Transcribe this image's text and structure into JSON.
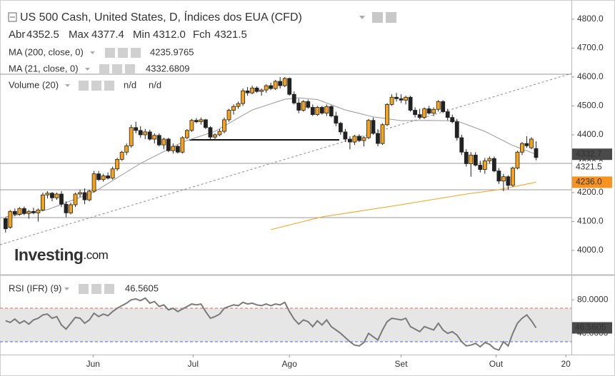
{
  "chart_data": {
    "type": "candlestick",
    "title": "US 500 Cash, United States, D, Índices dos EUA (CFD)",
    "ohlc_labels": [
      "Abr",
      "Max",
      "Min",
      "Fch"
    ],
    "ohlc_values": [
      "4352.5",
      "4377.4",
      "4312.0",
      "4321.5"
    ],
    "up_color": "#f7a21b",
    "down_color": "#222222",
    "xlim": [
      -1.2,
      121.6
    ],
    "xticks": [
      {
        "value": 18.8,
        "label": "Jun"
      },
      {
        "value": 40.3,
        "label": "Jul"
      },
      {
        "value": 61,
        "label": "Ago"
      },
      {
        "value": 85,
        "label": "Set"
      },
      {
        "value": 105.4,
        "label": "Out"
      },
      {
        "value": 120.4,
        "label": "20"
      }
    ],
    "ylim": [
      3921,
      4854
    ],
    "yticks": [
      {
        "value": 4800,
        "label": "4800.0"
      },
      {
        "value": 4700,
        "label": "4700.0"
      },
      {
        "value": 4600,
        "label": "4600.0"
      },
      {
        "value": 4500,
        "label": "4500.0"
      },
      {
        "value": 4400,
        "label": "4400.0"
      },
      {
        "value": 4300,
        "label": "4300.0"
      },
      {
        "value": 4200,
        "label": "4200.0"
      },
      {
        "value": 4100,
        "label": "4100.0"
      },
      {
        "value": 4000,
        "label": "4000.0"
      }
    ],
    "candles": [
      [
        4110,
        4115,
        4062,
        4075
      ],
      [
        4080,
        4140,
        4075,
        4135
      ],
      [
        4135,
        4145,
        4118,
        4125
      ],
      [
        4125,
        4150,
        4120,
        4145
      ],
      [
        4145,
        4152,
        4122,
        4128
      ],
      [
        4128,
        4140,
        4110,
        4135
      ],
      [
        4135,
        4148,
        4125,
        4130
      ],
      [
        4130,
        4145,
        4100,
        4140
      ],
      [
        4140,
        4200,
        4135,
        4192
      ],
      [
        4192,
        4205,
        4180,
        4198
      ],
      [
        4198,
        4202,
        4170,
        4182
      ],
      [
        4182,
        4200,
        4175,
        4195
      ],
      [
        4195,
        4205,
        4150,
        4160
      ],
      [
        4160,
        4170,
        4115,
        4130
      ],
      [
        4130,
        4165,
        4125,
        4158
      ],
      [
        4158,
        4200,
        4150,
        4195
      ],
      [
        4195,
        4210,
        4185,
        4200
      ],
      [
        4200,
        4215,
        4160,
        4175
      ],
      [
        4175,
        4210,
        4170,
        4205
      ],
      [
        4205,
        4275,
        4200,
        4265
      ],
      [
        4265,
        4275,
        4240,
        4245
      ],
      [
        4245,
        4265,
        4238,
        4258
      ],
      [
        4258,
        4270,
        4245,
        4250
      ],
      [
        4250,
        4290,
        4245,
        4282
      ],
      [
        4282,
        4320,
        4275,
        4315
      ],
      [
        4315,
        4345,
        4310,
        4340
      ],
      [
        4340,
        4370,
        4330,
        4362
      ],
      [
        4362,
        4435,
        4355,
        4425
      ],
      [
        4425,
        4445,
        4405,
        4415
      ],
      [
        4415,
        4430,
        4390,
        4400
      ],
      [
        4400,
        4420,
        4385,
        4410
      ],
      [
        4410,
        4418,
        4380,
        4385
      ],
      [
        4385,
        4405,
        4370,
        4398
      ],
      [
        4398,
        4405,
        4360,
        4365
      ],
      [
        4365,
        4390,
        4350,
        4385
      ],
      [
        4385,
        4390,
        4340,
        4345
      ],
      [
        4345,
        4370,
        4335,
        4360
      ],
      [
        4360,
        4365,
        4335,
        4340
      ],
      [
        4340,
        4395,
        4335,
        4390
      ],
      [
        4390,
        4420,
        4385,
        4415
      ],
      [
        4415,
        4455,
        4410,
        4450
      ],
      [
        4450,
        4458,
        4440,
        4445
      ],
      [
        4445,
        4460,
        4435,
        4452
      ],
      [
        4452,
        4455,
        4420,
        4425
      ],
      [
        4425,
        4430,
        4385,
        4392
      ],
      [
        4392,
        4405,
        4380,
        4400
      ],
      [
        4400,
        4420,
        4395,
        4412
      ],
      [
        4412,
        4460,
        4405,
        4452
      ],
      [
        4452,
        4490,
        4445,
        4485
      ],
      [
        4485,
        4505,
        4470,
        4498
      ],
      [
        4498,
        4515,
        4490,
        4508
      ],
      [
        4508,
        4560,
        4500,
        4552
      ],
      [
        4552,
        4565,
        4535,
        4545
      ],
      [
        4545,
        4570,
        4540,
        4562
      ],
      [
        4562,
        4568,
        4545,
        4550
      ],
      [
        4550,
        4560,
        4535,
        4555
      ],
      [
        4555,
        4575,
        4545,
        4570
      ],
      [
        4570,
        4580,
        4555,
        4560
      ],
      [
        4560,
        4590,
        4555,
        4585
      ],
      [
        4585,
        4600,
        4560,
        4570
      ],
      [
        4570,
        4600,
        4565,
        4595
      ],
      [
        4595,
        4598,
        4535,
        4540
      ],
      [
        4540,
        4550,
        4505,
        4510
      ],
      [
        4510,
        4525,
        4475,
        4485
      ],
      [
        4485,
        4520,
        4480,
        4515
      ],
      [
        4515,
        4522,
        4490,
        4495
      ],
      [
        4495,
        4505,
        4465,
        4470
      ],
      [
        4470,
        4500,
        4465,
        4495
      ],
      [
        4495,
        4500,
        4470,
        4475
      ],
      [
        4475,
        4505,
        4465,
        4498
      ],
      [
        4498,
        4502,
        4460,
        4465
      ],
      [
        4465,
        4480,
        4430,
        4440
      ],
      [
        4440,
        4445,
        4400,
        4410
      ],
      [
        4410,
        4420,
        4375,
        4385
      ],
      [
        4385,
        4395,
        4350,
        4375
      ],
      [
        4375,
        4400,
        4365,
        4395
      ],
      [
        4395,
        4402,
        4375,
        4380
      ],
      [
        4380,
        4395,
        4360,
        4390
      ],
      [
        4390,
        4455,
        4385,
        4450
      ],
      [
        4450,
        4460,
        4400,
        4405
      ],
      [
        4405,
        4420,
        4360,
        4370
      ],
      [
        4370,
        4440,
        4365,
        4435
      ],
      [
        4435,
        4510,
        4430,
        4505
      ],
      [
        4505,
        4540,
        4500,
        4530
      ],
      [
        4530,
        4545,
        4515,
        4525
      ],
      [
        4525,
        4540,
        4510,
        4520
      ],
      [
        4520,
        4535,
        4505,
        4530
      ],
      [
        4530,
        4535,
        4480,
        4485
      ],
      [
        4485,
        4495,
        4460,
        4470
      ],
      [
        4470,
        4490,
        4455,
        4460
      ],
      [
        4460,
        4495,
        4455,
        4490
      ],
      [
        4490,
        4500,
        4470,
        4475
      ],
      [
        4475,
        4495,
        4465,
        4488
      ],
      [
        4488,
        4520,
        4480,
        4515
      ],
      [
        4515,
        4520,
        4475,
        4480
      ],
      [
        4480,
        4490,
        4450,
        4460
      ],
      [
        4460,
        4470,
        4440,
        4445
      ],
      [
        4445,
        4455,
        4380,
        4390
      ],
      [
        4390,
        4400,
        4330,
        4340
      ],
      [
        4340,
        4350,
        4290,
        4300
      ],
      [
        4300,
        4340,
        4255,
        4330
      ],
      [
        4330,
        4340,
        4290,
        4295
      ],
      [
        4295,
        4310,
        4270,
        4280
      ],
      [
        4280,
        4320,
        4265,
        4310
      ],
      [
        4310,
        4325,
        4300,
        4318
      ],
      [
        4318,
        4325,
        4270,
        4275
      ],
      [
        4275,
        4285,
        4230,
        4240
      ],
      [
        4240,
        4265,
        4205,
        4255
      ],
      [
        4255,
        4260,
        4210,
        4225
      ],
      [
        4225,
        4290,
        4220,
        4285
      ],
      [
        4285,
        4345,
        4280,
        4340
      ],
      [
        4340,
        4375,
        4330,
        4370
      ],
      [
        4370,
        4395,
        4355,
        4362
      ],
      [
        4355,
        4392,
        4350,
        4385
      ],
      [
        4352.5,
        4377.4,
        4312.0,
        4321.5
      ]
    ],
    "ma200": {
      "name": "MA (200, close, 0)",
      "value_label": "4235.9765",
      "color": "#f7a21b",
      "x": [
        57,
        68,
        83,
        99,
        106,
        114
      ],
      "values": [
        4072,
        4116,
        4153,
        4195,
        4210,
        4235.9765
      ]
    },
    "ma21": {
      "name": "MA (21, close, 0)",
      "value_label": "4332.6809",
      "color": "#999999",
      "x": [
        0,
        9,
        19,
        29,
        38,
        45,
        53,
        60,
        63,
        67,
        73,
        79,
        85,
        91,
        97,
        103,
        109,
        114
      ],
      "values": [
        4116,
        4141,
        4202,
        4301,
        4375,
        4412,
        4486,
        4523,
        4528,
        4522,
        4486,
        4462,
        4449,
        4450,
        4448,
        4412,
        4363,
        4332.6809
      ]
    },
    "volume": {
      "name": "Volume (20)",
      "value_labels": [
        "n/d",
        "n/d"
      ]
    },
    "price_tags": [
      {
        "value": 4332.7,
        "label": "4332.7",
        "color": "#4a4a4a",
        "text_color": "#ffffff"
      },
      {
        "value": 4321.5,
        "label": "4321.5",
        "color": "#ffffff",
        "text_color": "#333333"
      },
      {
        "value": 4236.0,
        "label": "4236.0",
        "color": "#f7931e",
        "text_color": "#ffffff"
      }
    ],
    "rsi": {
      "name": "RSI (IFR) (9)",
      "value_label": "46.5605",
      "color": "#7a7a7a",
      "ylim": [
        15.5,
        107.4
      ],
      "yticks": [
        {
          "value": 80,
          "label": "80.0000"
        },
        {
          "value": 40,
          "label": "40.0000"
        }
      ],
      "band": [
        30,
        70
      ],
      "band_colors": [
        "#5b5bea",
        "#e06666"
      ],
      "tag": {
        "value": 46.5605,
        "label": "46.5605",
        "color": "#4a4a4a",
        "text_color": "#ffffff"
      },
      "values": [
        55,
        53,
        57,
        52,
        55,
        51,
        56,
        58,
        62,
        63,
        58,
        60,
        50,
        45,
        52,
        59,
        58,
        52,
        56,
        64,
        60,
        63,
        61,
        66,
        70,
        73,
        76,
        80,
        81,
        79,
        82,
        76,
        78,
        72,
        74,
        68,
        70,
        66,
        69,
        72,
        75,
        74,
        75,
        66,
        58,
        60,
        63,
        70,
        72,
        74,
        73,
        77,
        75,
        76,
        74,
        73,
        75,
        73,
        75,
        74,
        77,
        66,
        57,
        51,
        56,
        54,
        48,
        55,
        50,
        56,
        48,
        44,
        40,
        35,
        30,
        26,
        25,
        29,
        40,
        36,
        32,
        44,
        54,
        58,
        57,
        56,
        58,
        48,
        45,
        42,
        48,
        46,
        44,
        52,
        44,
        40,
        42,
        38,
        30,
        25,
        26,
        28,
        24,
        29,
        27,
        22,
        20,
        30,
        25,
        40,
        52,
        58,
        62,
        55,
        46.5605
      ]
    },
    "logo": "Investing",
    "logo_suffix": ".com"
  }
}
